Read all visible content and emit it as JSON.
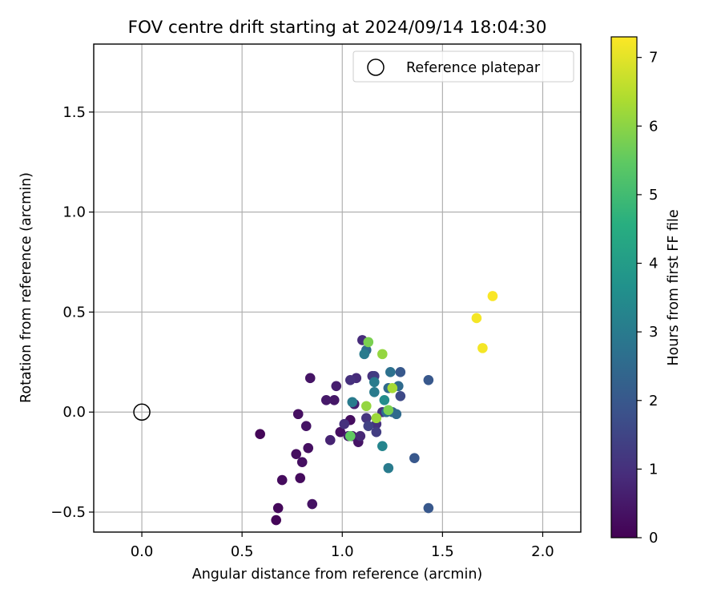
{
  "chart_data": {
    "type": "scatter",
    "title": "FOV centre drift starting at 2024/09/14 18:04:30",
    "xlabel": "Angular distance from reference (arcmin)",
    "ylabel": "Rotation from reference (arcmin)",
    "xlim": [
      -0.24,
      2.19
    ],
    "ylim": [
      -0.6,
      1.84
    ],
    "xticks": [
      0.0,
      0.5,
      1.0,
      1.5,
      2.0
    ],
    "xtick_labels": [
      "0.0",
      "0.5",
      "1.0",
      "1.5",
      "2.0"
    ],
    "yticks": [
      -0.5,
      0.0,
      0.5,
      1.0,
      1.5
    ],
    "ytick_labels": [
      "−0.5",
      "0.0",
      "0.5",
      "1.0",
      "1.5"
    ],
    "grid": true,
    "legend": {
      "position": "top-right",
      "entries": [
        "Reference platepar"
      ]
    },
    "reference_point": {
      "label": "Reference platepar",
      "x": 0.0,
      "y": 0.0,
      "marker": "open-circle"
    },
    "colorbar": {
      "label": "Hours from first FF file",
      "colormap": "viridis",
      "range": [
        0,
        7.3
      ],
      "ticks": [
        0,
        1,
        2,
        3,
        4,
        5,
        6,
        7
      ],
      "tick_labels": [
        "0",
        "1",
        "2",
        "3",
        "4",
        "5",
        "6",
        "7"
      ]
    },
    "points": [
      {
        "x": 0.59,
        "y": -0.11,
        "c": 0.1
      },
      {
        "x": 0.67,
        "y": -0.54,
        "c": 0.1
      },
      {
        "x": 0.68,
        "y": -0.48,
        "c": 0.15
      },
      {
        "x": 0.7,
        "y": -0.34,
        "c": 0.2
      },
      {
        "x": 0.77,
        "y": -0.21,
        "c": 0.25
      },
      {
        "x": 0.78,
        "y": -0.01,
        "c": 0.3
      },
      {
        "x": 0.79,
        "y": -0.33,
        "c": 0.2
      },
      {
        "x": 0.8,
        "y": -0.25,
        "c": 0.3
      },
      {
        "x": 0.82,
        "y": -0.07,
        "c": 0.4
      },
      {
        "x": 0.83,
        "y": -0.18,
        "c": 0.3
      },
      {
        "x": 0.84,
        "y": 0.17,
        "c": 0.4
      },
      {
        "x": 0.85,
        "y": -0.46,
        "c": 0.35
      },
      {
        "x": 0.92,
        "y": 0.06,
        "c": 0.5
      },
      {
        "x": 0.94,
        "y": -0.14,
        "c": 0.7
      },
      {
        "x": 0.96,
        "y": 0.06,
        "c": 0.45
      },
      {
        "x": 0.97,
        "y": 0.13,
        "c": 0.6
      },
      {
        "x": 0.99,
        "y": -0.1,
        "c": 0.3
      },
      {
        "x": 1.01,
        "y": -0.06,
        "c": 1.0
      },
      {
        "x": 1.03,
        "y": -0.12,
        "c": 0.6
      },
      {
        "x": 1.04,
        "y": -0.04,
        "c": 0.25
      },
      {
        "x": 1.04,
        "y": 0.16,
        "c": 1.0
      },
      {
        "x": 1.05,
        "y": 0.05,
        "c": 3.0
      },
      {
        "x": 1.05,
        "y": -0.12,
        "c": 0.5
      },
      {
        "x": 1.06,
        "y": 0.04,
        "c": 0.6
      },
      {
        "x": 1.07,
        "y": 0.17,
        "c": 0.9
      },
      {
        "x": 1.08,
        "y": -0.15,
        "c": 0.4
      },
      {
        "x": 1.09,
        "y": -0.12,
        "c": 0.8
      },
      {
        "x": 1.1,
        "y": 0.36,
        "c": 0.9
      },
      {
        "x": 1.11,
        "y": 0.29,
        "c": 3.0
      },
      {
        "x": 1.12,
        "y": 0.31,
        "c": 2.5
      },
      {
        "x": 1.12,
        "y": -0.03,
        "c": 1.1
      },
      {
        "x": 1.13,
        "y": -0.07,
        "c": 1.4
      },
      {
        "x": 1.15,
        "y": 0.18,
        "c": 1.0
      },
      {
        "x": 1.16,
        "y": 0.18,
        "c": 1.3
      },
      {
        "x": 1.16,
        "y": 0.1,
        "c": 3.0
      },
      {
        "x": 1.16,
        "y": 0.15,
        "c": 3.0
      },
      {
        "x": 1.17,
        "y": -0.06,
        "c": 1.0
      },
      {
        "x": 1.17,
        "y": -0.1,
        "c": 1.3
      },
      {
        "x": 1.2,
        "y": 0.0,
        "c": 1.0
      },
      {
        "x": 1.2,
        "y": -0.17,
        "c": 3.3
      },
      {
        "x": 1.21,
        "y": 0.06,
        "c": 3.5
      },
      {
        "x": 1.22,
        "y": 0.0,
        "c": 2.6
      },
      {
        "x": 1.23,
        "y": 0.12,
        "c": 2.5
      },
      {
        "x": 1.23,
        "y": -0.28,
        "c": 3.0
      },
      {
        "x": 1.24,
        "y": 0.2,
        "c": 2.7
      },
      {
        "x": 1.25,
        "y": 0.0,
        "c": 2.4
      },
      {
        "x": 1.27,
        "y": -0.01,
        "c": 2.5
      },
      {
        "x": 1.28,
        "y": 0.13,
        "c": 2.5
      },
      {
        "x": 1.29,
        "y": 0.08,
        "c": 1.6
      },
      {
        "x": 1.29,
        "y": 0.2,
        "c": 2.0
      },
      {
        "x": 1.36,
        "y": -0.23,
        "c": 2.0
      },
      {
        "x": 1.43,
        "y": 0.16,
        "c": 2.0
      },
      {
        "x": 1.43,
        "y": -0.48,
        "c": 2.0
      },
      {
        "x": 1.04,
        "y": -0.12,
        "c": 5.5
      },
      {
        "x": 1.12,
        "y": 0.03,
        "c": 6.1
      },
      {
        "x": 1.13,
        "y": 0.35,
        "c": 5.8
      },
      {
        "x": 1.17,
        "y": -0.03,
        "c": 6.2
      },
      {
        "x": 1.2,
        "y": 0.29,
        "c": 6.1
      },
      {
        "x": 1.23,
        "y": 0.01,
        "c": 5.8
      },
      {
        "x": 1.25,
        "y": 0.12,
        "c": 6.3
      },
      {
        "x": 1.67,
        "y": 0.47,
        "c": 7.2
      },
      {
        "x": 1.7,
        "y": 0.32,
        "c": 7.2
      },
      {
        "x": 1.75,
        "y": 0.58,
        "c": 7.25
      }
    ]
  }
}
